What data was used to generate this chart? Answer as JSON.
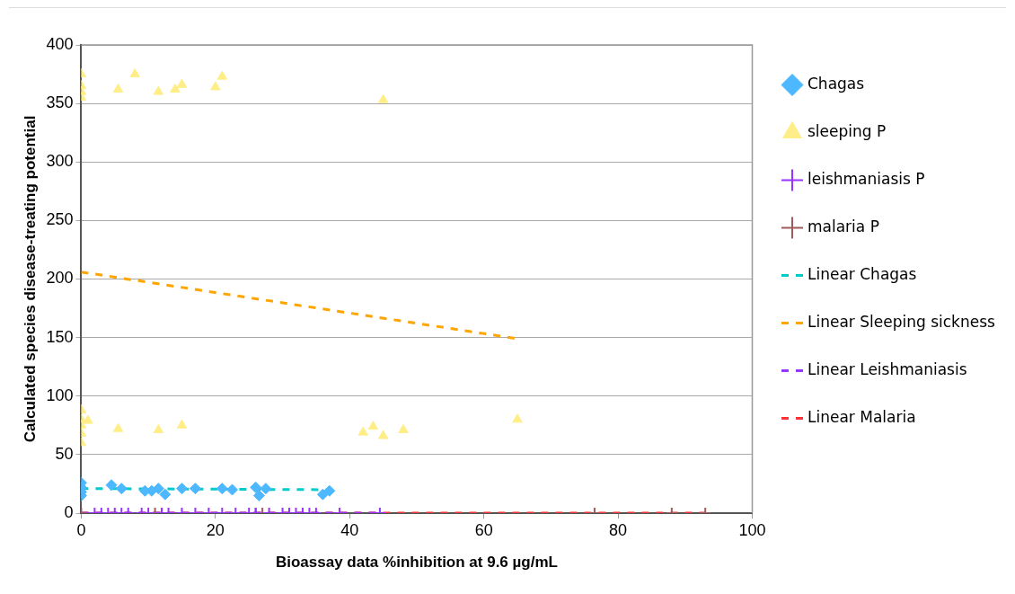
{
  "chart_data": {
    "type": "scatter",
    "xlabel": "Bioassay data %inhibition at 9.6 µg/mL",
    "ylabel": "Calculated species disease-treating potential",
    "xlim": [
      0,
      100
    ],
    "xticks": [
      0,
      20,
      40,
      60,
      80,
      100
    ],
    "ylim": [
      0,
      400
    ],
    "yticks": [
      0,
      50,
      100,
      150,
      200,
      250,
      300,
      350,
      400
    ],
    "grid": "y",
    "legend": "right",
    "line_style": "dashed",
    "series": [
      {
        "name": "Chagas",
        "color": "#4db8ff",
        "marker": "diamond",
        "x": [
          0,
          0,
          0,
          0,
          4.5,
          6,
          9.5,
          10.5,
          11.5,
          12.5,
          15,
          17,
          21,
          22.5,
          26,
          26.5,
          27.5,
          36,
          37
        ],
        "values": [
          26,
          22,
          18,
          15,
          24,
          21,
          19,
          19,
          21,
          16,
          21,
          21,
          21,
          20,
          22,
          15,
          21,
          16,
          19
        ]
      },
      {
        "name": "sleeping P",
        "color": "#ffee88",
        "marker": "triangle",
        "x": [
          0,
          0,
          0,
          0,
          5.5,
          8,
          11.5,
          14,
          15,
          20,
          21,
          45,
          0,
          0,
          0,
          0,
          0,
          1,
          5.5,
          11.5,
          15,
          42,
          43.5,
          45,
          48,
          65
        ],
        "values": [
          375,
          365,
          360,
          355,
          362,
          375,
          360,
          362,
          366,
          364,
          373,
          353,
          88,
          80,
          75,
          68,
          60,
          79,
          72,
          71,
          75,
          69,
          74,
          66,
          71,
          80
        ]
      },
      {
        "name": "leishmaniasis P",
        "color": "#9933ff",
        "marker": "cross",
        "x": [
          2,
          3,
          4,
          5,
          6,
          7,
          9,
          10,
          12,
          13,
          15,
          17,
          19,
          21,
          23,
          25,
          26,
          28,
          30,
          31,
          32,
          33,
          34,
          35,
          38.5,
          44.5
        ],
        "values": [
          0,
          0,
          0,
          0,
          0,
          0,
          0,
          0,
          0,
          0,
          0,
          0,
          0,
          0,
          0,
          0,
          0,
          0,
          0,
          0,
          0,
          0,
          0,
          0,
          0,
          0
        ]
      },
      {
        "name": "malaria P",
        "color": "#a05a5a",
        "marker": "cross",
        "x": [
          0,
          11,
          12,
          26,
          27,
          76.5,
          88,
          93
        ],
        "values": [
          0,
          0,
          0,
          0,
          0,
          0,
          0,
          0
        ]
      },
      {
        "name": "Linear Chagas",
        "type": "line",
        "color": "#00cccc",
        "x": [
          0,
          37
        ],
        "values": [
          21,
          20
        ]
      },
      {
        "name": "Linear Sleeping sickness",
        "type": "line",
        "color": "#ffa500",
        "x": [
          0,
          65
        ],
        "values": [
          206,
          149
        ]
      },
      {
        "name": "Linear Leishmaniasis",
        "type": "line",
        "color": "#9933ff",
        "x": [
          0,
          45
        ],
        "values": [
          0,
          0
        ]
      },
      {
        "name": "Linear Malaria",
        "type": "line",
        "color": "#ff3333",
        "x": [
          0,
          93
        ],
        "values": [
          0,
          0
        ]
      }
    ]
  }
}
